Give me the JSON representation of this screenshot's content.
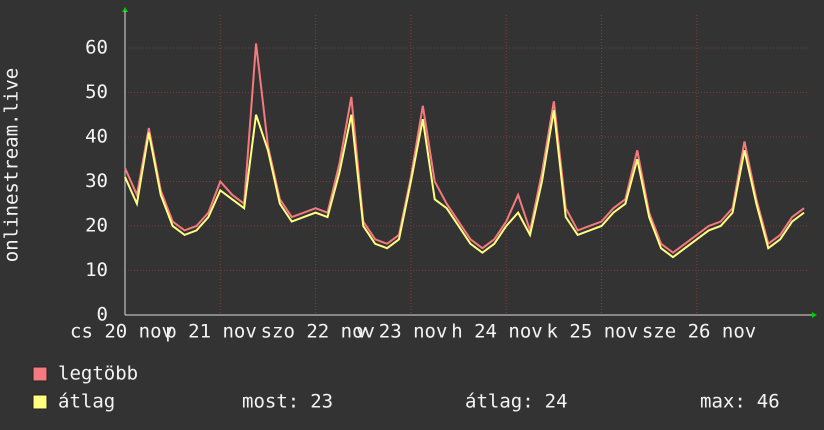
{
  "chart_data": {
    "type": "line",
    "y_label": "onlinestream.live",
    "x": [
      0,
      3,
      6,
      9,
      12,
      15,
      18,
      21,
      24,
      27,
      30,
      33,
      36,
      39,
      42,
      45,
      48,
      51,
      54,
      57,
      60,
      63,
      66,
      69,
      72,
      75,
      78,
      81,
      84,
      87,
      90,
      93,
      96,
      99,
      102,
      105,
      108,
      111,
      114,
      117,
      120,
      123,
      126,
      129,
      132,
      135,
      138,
      141,
      144,
      147,
      150,
      153,
      156,
      159,
      162,
      165,
      168,
      171
    ],
    "series": [
      {
        "name": "legtöbb",
        "color": "#f47a80",
        "values": [
          33,
          27,
          42,
          28,
          21,
          19,
          20,
          23,
          30,
          27,
          25,
          61,
          38,
          26,
          22,
          23,
          24,
          23,
          34,
          49,
          21,
          17,
          16,
          18,
          31,
          47,
          30,
          25,
          21,
          17,
          15,
          17,
          21,
          27,
          19,
          32,
          48,
          24,
          19,
          20,
          21,
          24,
          26,
          37,
          23,
          16,
          14,
          16,
          18,
          20,
          21,
          24,
          39,
          26,
          16,
          18,
          22,
          24
        ]
      },
      {
        "name": "átlag",
        "color": "#ffff80",
        "values": [
          31,
          25,
          41,
          27,
          20,
          18,
          19,
          22,
          28,
          26,
          24,
          45,
          37,
          25,
          21,
          22,
          23,
          22,
          32,
          45,
          20,
          16,
          15,
          17,
          30,
          44,
          26,
          24,
          20,
          16,
          14,
          16,
          20,
          23,
          18,
          30,
          46,
          22,
          18,
          19,
          20,
          23,
          25,
          35,
          22,
          15,
          13,
          15,
          17,
          19,
          20,
          23,
          37,
          25,
          15,
          17,
          21,
          23
        ]
      }
    ],
    "xlim": [
      0,
      172
    ],
    "xticks": [
      {
        "value": 0,
        "label": "cs 20 nov"
      },
      {
        "value": 24,
        "label": "p 21 nov"
      },
      {
        "value": 48,
        "label": "szo 22 nov"
      },
      {
        "value": 72,
        "label": "v 23 nov"
      },
      {
        "value": 96,
        "label": "h 24 nov"
      },
      {
        "value": 120,
        "label": "k 25 nov"
      },
      {
        "value": 144,
        "label": "sze 26 nov"
      }
    ],
    "ylim": [
      0,
      67.4
    ],
    "yticks": [
      0,
      10,
      20,
      30,
      40,
      50,
      60
    ],
    "grid": true,
    "stats": [
      {
        "label": "most:",
        "value": 23
      },
      {
        "label": "átlag:",
        "value": 24
      },
      {
        "label": "max:",
        "value": 46
      }
    ]
  }
}
